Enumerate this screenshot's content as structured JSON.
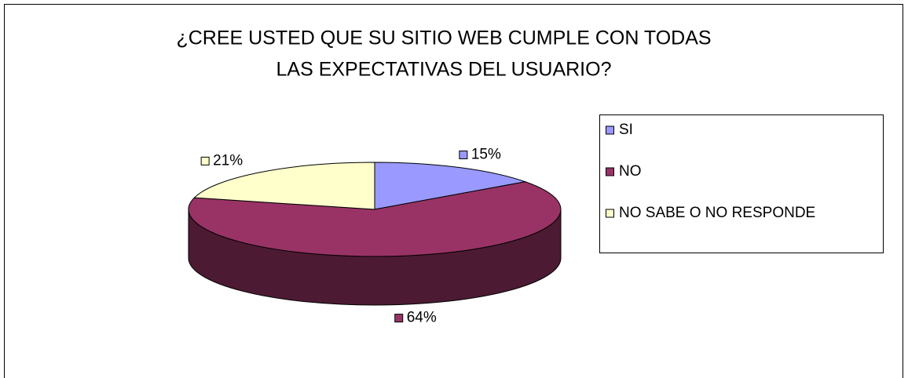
{
  "chart_data": {
    "type": "pie",
    "title": [
      "¿CREE USTED QUE SU SITIO WEB CUMPLE CON TODAS",
      "LAS EXPECTATIVAS DEL USUARIO?"
    ],
    "categories": [
      "SI",
      "NO",
      "NO SABE O NO RESPONDE"
    ],
    "values": [
      15,
      64,
      21
    ],
    "value_labels": [
      "15%",
      "64%",
      "21%"
    ],
    "colors": [
      "#9999FF",
      "#993366",
      "#FFFFCC"
    ],
    "legend": "right"
  }
}
